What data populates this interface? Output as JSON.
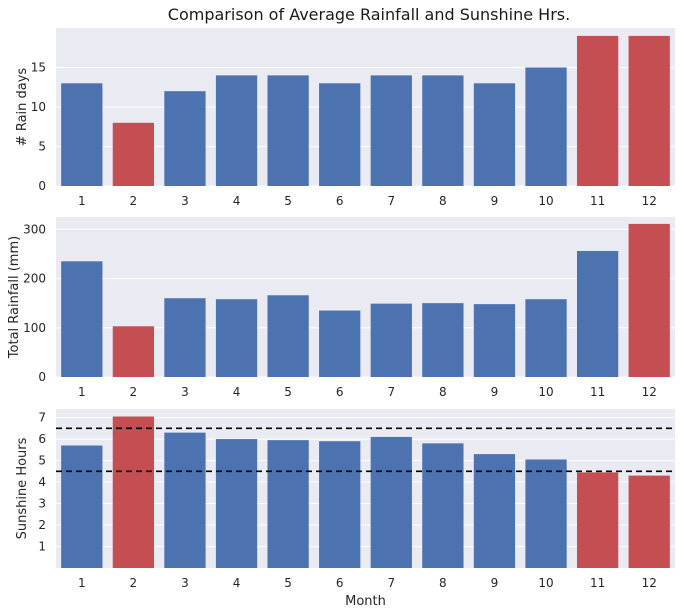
{
  "figure": {
    "title": "Comparison of Average Rainfall and Sunshine Hrs."
  },
  "colors": {
    "panel_bg": "#EAEAF2",
    "grid": "#FFFFFF",
    "blue": "#4C72B0",
    "red": "#C44E52",
    "ref_line": "#000000"
  },
  "chart_data": [
    {
      "type": "bar",
      "id": "rain-days",
      "categories": [
        "1",
        "2",
        "3",
        "4",
        "5",
        "6",
        "7",
        "8",
        "9",
        "10",
        "11",
        "12"
      ],
      "values": [
        13,
        8,
        12,
        14,
        14,
        13,
        14,
        14,
        13,
        15,
        19,
        19
      ],
      "highlight": [
        1,
        10,
        11
      ],
      "ylabel": "# Rain days",
      "xlabel": "",
      "ylim": [
        0,
        20
      ],
      "yticks": [
        0,
        5,
        10,
        15
      ],
      "grid": true
    },
    {
      "type": "bar",
      "id": "total-rainfall",
      "categories": [
        "1",
        "2",
        "3",
        "4",
        "5",
        "6",
        "7",
        "8",
        "9",
        "10",
        "11",
        "12"
      ],
      "values": [
        235,
        103,
        160,
        158,
        166,
        135,
        149,
        150,
        148,
        158,
        256,
        311
      ],
      "highlight": [
        1,
        11
      ],
      "ylabel": "Total Rainfall (mm)",
      "xlabel": "",
      "ylim": [
        0,
        325
      ],
      "yticks": [
        0,
        100,
        200,
        300
      ],
      "grid": true
    },
    {
      "type": "bar",
      "id": "sunshine-hours",
      "categories": [
        "1",
        "2",
        "3",
        "4",
        "5",
        "6",
        "7",
        "8",
        "9",
        "10",
        "11",
        "12"
      ],
      "values": [
        5.7,
        7.05,
        6.3,
        6.0,
        5.95,
        5.9,
        6.1,
        5.8,
        5.3,
        5.05,
        4.45,
        4.3
      ],
      "highlight": [
        1,
        10,
        11
      ],
      "ylabel": "Sunshine Hours",
      "xlabel": "Month",
      "ylim": [
        0,
        7.4
      ],
      "yticks": [
        1,
        2,
        3,
        4,
        5,
        6,
        7
      ],
      "grid": true,
      "reference_lines": [
        6.5,
        4.5
      ]
    }
  ]
}
